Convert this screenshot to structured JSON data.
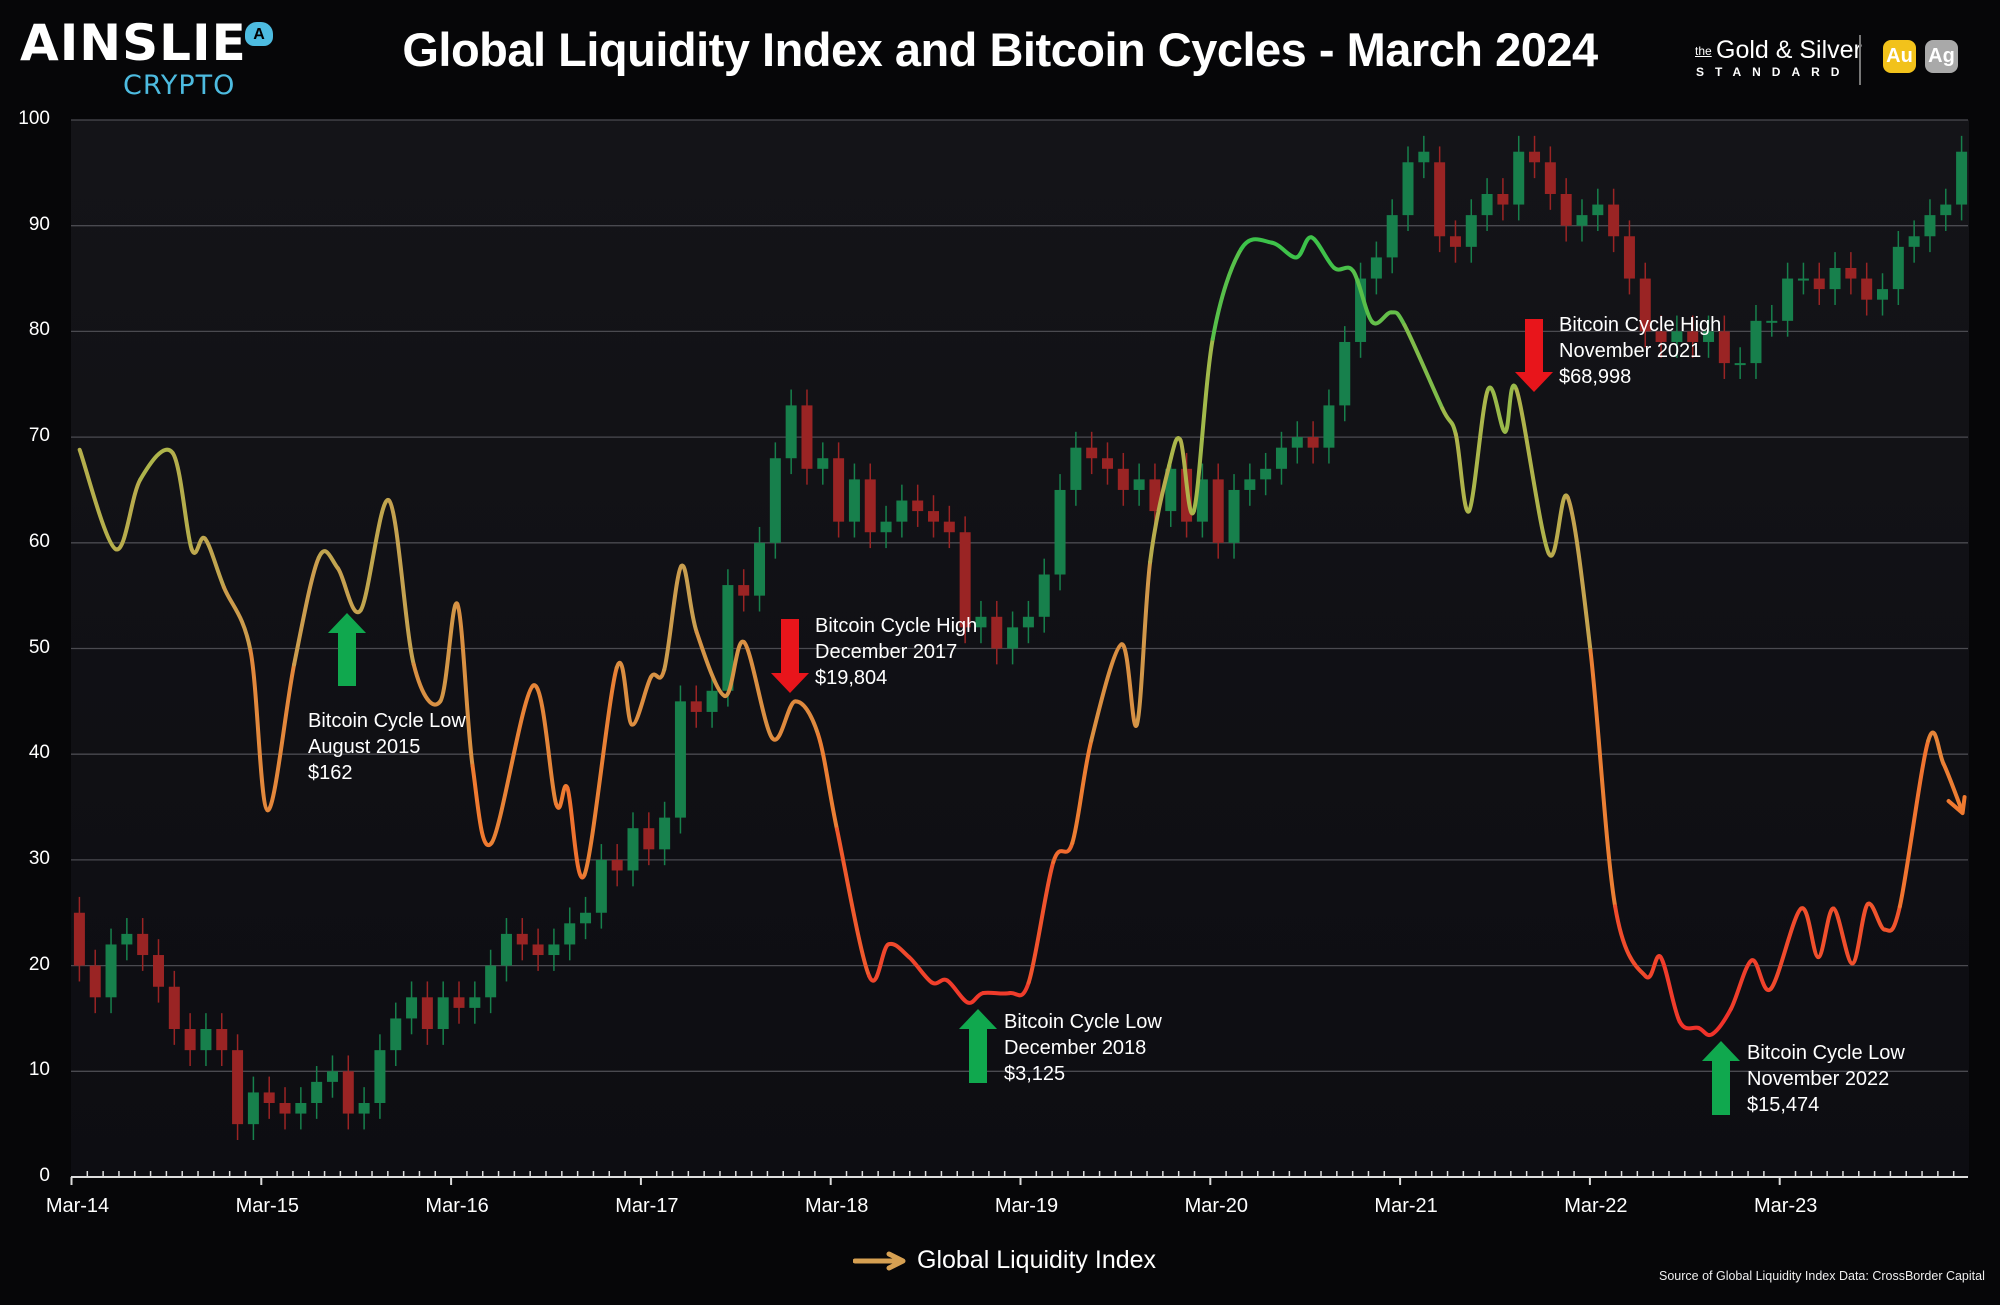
{
  "header": {
    "title": "Global Liquidity Index and Bitcoin Cycles - March 2024",
    "logo_left": {
      "name": "AINSLIE",
      "sub": "CRYPTO",
      "badge": "A",
      "color": "#4dbbe0"
    },
    "logo_right": {
      "the": "the",
      "name": "Gold & Silver",
      "standard": "STANDARD",
      "icon_gold": "Au",
      "icon_silver": "Ag",
      "gold_color": "#f2c21b",
      "silver_color": "#a9a9a9"
    }
  },
  "legend": {
    "label": "Global Liquidity Index",
    "icon": "arrow-right-icon",
    "color": "#d6a052"
  },
  "source": "Source of Global Liquidity Index Data: CrossBorder Capital",
  "annotations": [
    {
      "direction": "up",
      "color": "#10a84e",
      "lines": [
        "Bitcoin Cycle Low",
        "August 2015",
        "$162"
      ]
    },
    {
      "direction": "down",
      "color": "#e8151b",
      "lines": [
        "Bitcoin Cycle High",
        "December 2017",
        "$19,804"
      ]
    },
    {
      "direction": "up",
      "color": "#10a84e",
      "lines": [
        "Bitcoin Cycle Low",
        "December 2018",
        "$3,125"
      ]
    },
    {
      "direction": "down",
      "color": "#e8151b",
      "lines": [
        "Bitcoin Cycle High",
        "November 2021",
        "$68,998"
      ]
    },
    {
      "direction": "up",
      "color": "#10a84e",
      "lines": [
        "Bitcoin Cycle Low",
        "November 2022",
        "$15,474"
      ]
    }
  ],
  "chart_data": {
    "type": "line",
    "title": "Global Liquidity Index and Bitcoin Cycles - March 2024",
    "xlabel": "",
    "ylabel": "",
    "ylim": [
      0,
      100
    ],
    "yticks": [
      "0",
      "10",
      "20",
      "30",
      "40",
      "50",
      "60",
      "70",
      "80",
      "90",
      "100"
    ],
    "xticks": [
      "Mar-14",
      "Mar-15",
      "Mar-16",
      "Mar-17",
      "Mar-18",
      "Mar-19",
      "Mar-20",
      "Mar-21",
      "Mar-22",
      "Mar-23"
    ],
    "grid": "horizontal",
    "legend_position": "bottom-center",
    "colors": {
      "high": "#3cc24a",
      "mid": "#c8a050",
      "low": "#f0322a",
      "candle_up": "#17804c",
      "candle_down": "#9a2424"
    },
    "series": [
      {
        "name": "Global Liquidity Index",
        "x_years": [
          2014.21,
          2014.4,
          2014.53,
          2014.7,
          2014.8,
          2014.87,
          2014.97,
          2015.11,
          2015.2,
          2015.34,
          2015.47,
          2015.57,
          2015.69,
          2015.84,
          2015.97,
          2016.11,
          2016.2,
          2016.28,
          2016.38,
          2016.6,
          2016.72,
          2016.78,
          2016.87,
          2017.04,
          2017.12,
          2017.22,
          2017.29,
          2017.38,
          2017.46,
          2017.61,
          2017.71,
          2017.86,
          2017.98,
          2018.1,
          2018.2,
          2018.37,
          2018.47,
          2018.58,
          2018.7,
          2018.78,
          2018.89,
          2018.97,
          2019.11,
          2019.21,
          2019.34,
          2019.44,
          2019.54,
          2019.7,
          2019.78,
          2019.85,
          2019.95,
          2020.01,
          2020.08,
          2020.18,
          2020.33,
          2020.49,
          2020.62,
          2020.7,
          2020.82,
          2020.92,
          2021.02,
          2021.12,
          2021.19,
          2021.39,
          2021.46,
          2021.53,
          2021.63,
          2021.72,
          2021.78,
          2021.95,
          2022.05,
          2022.17,
          2022.3,
          2022.46,
          2022.54,
          2022.64,
          2022.74,
          2022.81,
          2022.91,
          2023.02,
          2023.12,
          2023.28,
          2023.37,
          2023.45,
          2023.55,
          2023.63,
          2023.72,
          2023.8,
          2023.95,
          2024.03,
          2024.12
        ],
        "values": [
          68.8,
          59.4,
          66,
          68.5,
          59.4,
          60.4,
          55.8,
          49.8,
          34.7,
          48.5,
          58.6,
          57.6,
          53.6,
          64,
          48.5,
          45,
          54.2,
          38.9,
          31.6,
          46.5,
          35.3,
          36.8,
          28.6,
          48.2,
          42.8,
          47.3,
          48,
          57.8,
          51.6,
          45.5,
          50.6,
          41.5,
          45,
          41.9,
          32.9,
          19,
          22,
          20.8,
          18.4,
          18.6,
          16.5,
          17.4,
          17.4,
          18.4,
          29.8,
          31.6,
          41.3,
          50.4,
          42.8,
          58.2,
          67.3,
          69.7,
          63,
          79.3,
          87.8,
          88.4,
          87,
          88.9,
          86,
          85.7,
          80.9,
          81.8,
          80.6,
          72.7,
          70.3,
          63,
          74.5,
          70.5,
          74.5,
          59,
          64.3,
          49.8,
          25.6,
          19,
          20.8,
          14.7,
          14.1,
          13.5,
          15.9,
          20.5,
          17.8,
          25.4,
          20.8,
          25.4,
          20.2,
          25.8,
          23.4,
          25.6,
          41.3,
          39.1,
          35
        ]
      },
      {
        "type": "candlestick",
        "interval": "monthly",
        "start": "2014-03",
        "ohlc_note_fields": [
          "open",
          "close"
        ],
        "candles": [
          [
            25,
            20
          ],
          [
            20,
            17
          ],
          [
            17,
            22
          ],
          [
            22,
            23
          ],
          [
            23,
            21
          ],
          [
            21,
            18
          ],
          [
            18,
            14
          ],
          [
            14,
            12
          ],
          [
            12,
            14
          ],
          [
            14,
            12
          ],
          [
            12,
            5
          ],
          [
            5,
            8
          ],
          [
            8,
            7
          ],
          [
            7,
            6
          ],
          [
            6,
            7
          ],
          [
            7,
            9
          ],
          [
            9,
            10
          ],
          [
            10,
            6
          ],
          [
            6,
            7
          ],
          [
            7,
            12
          ],
          [
            12,
            15
          ],
          [
            15,
            17
          ],
          [
            17,
            14
          ],
          [
            14,
            17
          ],
          [
            17,
            16
          ],
          [
            16,
            17
          ],
          [
            17,
            20
          ],
          [
            20,
            23
          ],
          [
            23,
            22
          ],
          [
            22,
            21
          ],
          [
            21,
            22
          ],
          [
            22,
            24
          ],
          [
            24,
            25
          ],
          [
            25,
            30
          ],
          [
            30,
            29
          ],
          [
            29,
            33
          ],
          [
            33,
            31
          ],
          [
            31,
            34
          ],
          [
            34,
            45
          ],
          [
            45,
            44
          ],
          [
            44,
            46
          ],
          [
            46,
            56
          ],
          [
            56,
            55
          ],
          [
            55,
            60
          ],
          [
            60,
            68
          ],
          [
            68,
            73
          ],
          [
            73,
            67
          ],
          [
            67,
            68
          ],
          [
            68,
            62
          ],
          [
            62,
            66
          ],
          [
            66,
            61
          ],
          [
            61,
            62
          ],
          [
            62,
            64
          ],
          [
            64,
            63
          ],
          [
            63,
            62
          ],
          [
            62,
            61
          ],
          [
            61,
            52
          ],
          [
            52,
            53
          ],
          [
            53,
            50
          ],
          [
            50,
            52
          ],
          [
            52,
            53
          ],
          [
            53,
            57
          ],
          [
            57,
            65
          ],
          [
            65,
            69
          ],
          [
            69,
            68
          ],
          [
            68,
            67
          ],
          [
            67,
            65
          ],
          [
            65,
            66
          ],
          [
            66,
            63
          ],
          [
            63,
            67
          ],
          [
            67,
            62
          ],
          [
            62,
            66
          ],
          [
            66,
            60
          ],
          [
            60,
            65
          ],
          [
            65,
            66
          ],
          [
            66,
            67
          ],
          [
            67,
            69
          ],
          [
            69,
            70
          ],
          [
            70,
            69
          ],
          [
            69,
            73
          ],
          [
            73,
            79
          ],
          [
            79,
            85
          ],
          [
            85,
            87
          ],
          [
            87,
            91
          ],
          [
            91,
            96
          ],
          [
            96,
            97
          ],
          [
            96,
            89
          ],
          [
            89,
            88
          ],
          [
            88,
            91
          ],
          [
            91,
            93
          ],
          [
            93,
            92
          ],
          [
            92,
            97
          ],
          [
            97,
            96
          ],
          [
            96,
            93
          ],
          [
            93,
            90
          ],
          [
            90,
            91
          ],
          [
            91,
            92
          ],
          [
            92,
            89
          ],
          [
            89,
            85
          ],
          [
            85,
            80
          ],
          [
            80,
            79
          ],
          [
            79,
            80
          ],
          [
            80,
            79
          ],
          [
            79,
            80
          ],
          [
            80,
            77
          ],
          [
            77,
            77
          ],
          [
            77,
            81
          ],
          [
            81,
            81
          ],
          [
            81,
            85
          ],
          [
            85,
            85
          ],
          [
            85,
            84
          ],
          [
            84,
            86
          ],
          [
            86,
            85
          ],
          [
            85,
            83
          ],
          [
            83,
            84
          ],
          [
            84,
            88
          ],
          [
            88,
            89
          ],
          [
            89,
            91
          ],
          [
            91,
            92
          ],
          [
            92,
            97
          ]
        ]
      }
    ]
  }
}
